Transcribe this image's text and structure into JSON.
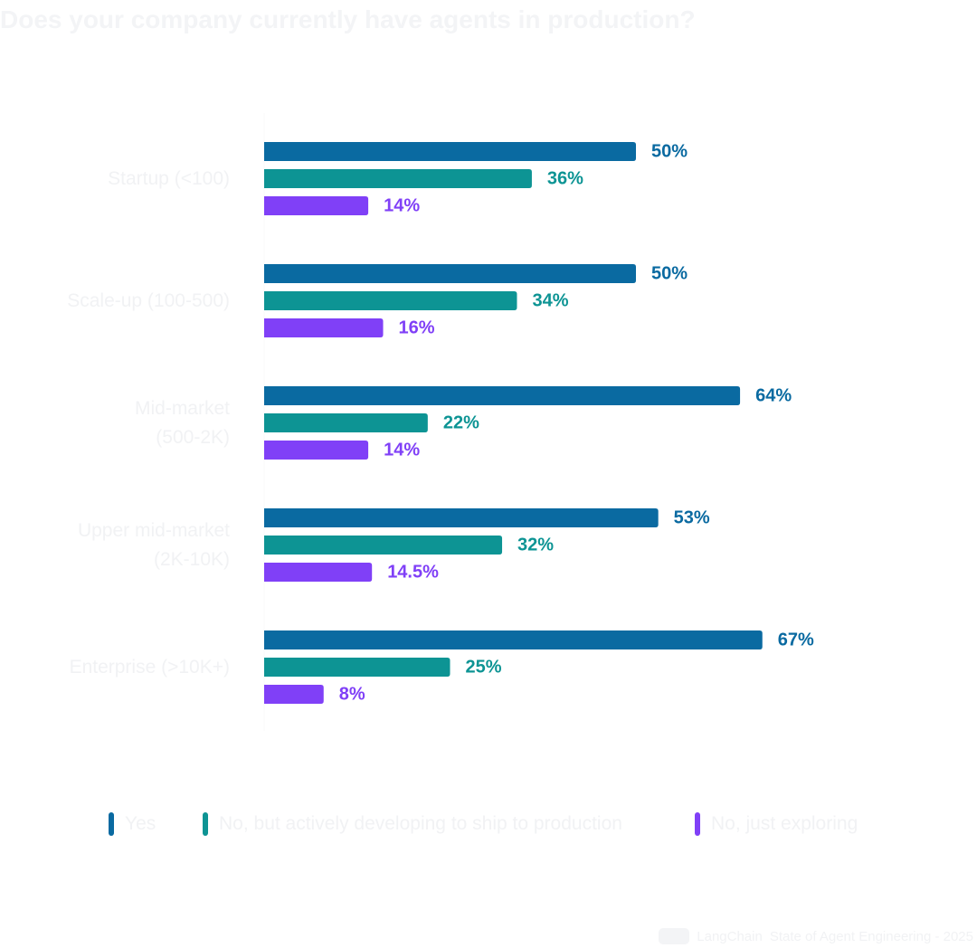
{
  "chart_data": {
    "type": "bar",
    "orientation": "horizontal",
    "title": "Does your company currently have agents in production?",
    "categories": [
      "Startup (<100)",
      "Scale-up (100-500)",
      "Mid-market (500-2K)",
      "Upper mid-market (2K-10K)",
      "Enterprise (>10K+)"
    ],
    "category_lines": [
      [
        "Startup (<100)"
      ],
      [
        "Scale-up (100-500)"
      ],
      [
        "Mid-market",
        "(500-2K)"
      ],
      [
        "Upper mid-market",
        "(2K-10K)"
      ],
      [
        "Enterprise (>10K+)"
      ]
    ],
    "series": [
      {
        "name": "Yes",
        "color": "#0a6aa1",
        "values": [
          50,
          50,
          64,
          53,
          67
        ],
        "labels": [
          "50%",
          "50%",
          "64%",
          "53%",
          "67%"
        ]
      },
      {
        "name": "No, but actively developing to ship to production",
        "color": "#0d9494",
        "values": [
          36,
          34,
          22,
          32,
          25
        ],
        "labels": [
          "36%",
          "34%",
          "22%",
          "32%",
          "25%"
        ]
      },
      {
        "name": "No, just exploring",
        "color": "#8040f7",
        "values": [
          14,
          16,
          14,
          14.5,
          8
        ],
        "labels": [
          "14%",
          "16%",
          "14%",
          "14.5%",
          "8%"
        ]
      }
    ],
    "xlim": [
      0,
      100
    ],
    "grid": false,
    "legend_position": "bottom"
  },
  "footer": {
    "brand": "LangChain",
    "text": "State of Agent Engineering - 2025"
  }
}
